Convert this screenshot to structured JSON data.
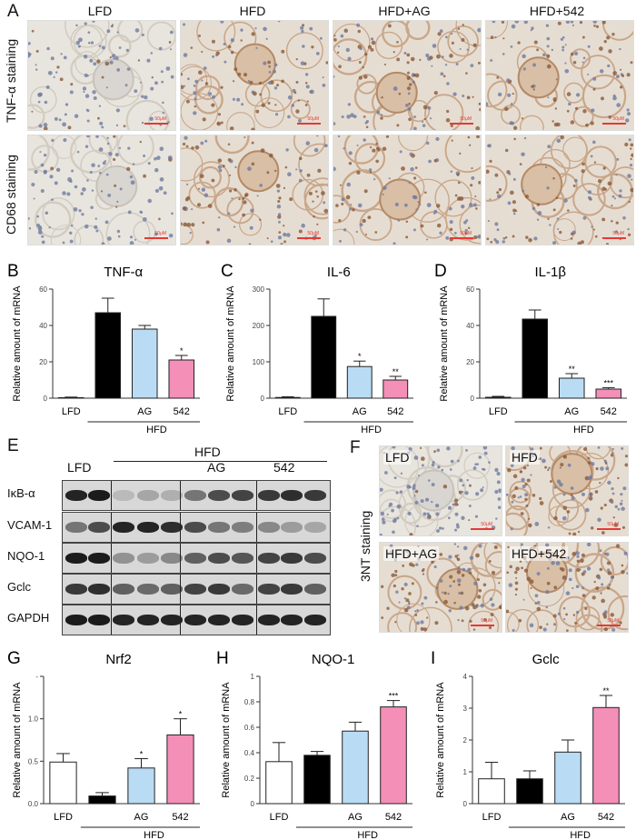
{
  "panelA": {
    "label": "A",
    "columns": [
      "LFD",
      "HFD",
      "HFD+AG",
      "HFD+542"
    ],
    "rows": [
      "TNF-α staining",
      "CD68 staining"
    ],
    "scale_text": "50μM"
  },
  "panelF": {
    "label": "F",
    "row_label": "3NT staining",
    "tiles": [
      "LFD",
      "HFD",
      "HFD+AG",
      "HFD+542"
    ]
  },
  "panelE": {
    "label": "E",
    "groups": {
      "lfd": "LFD",
      "hfd": "HFD",
      "ag": "AG",
      "542": "542"
    },
    "proteins": [
      "IκB-α",
      "VCAM-1",
      "NQO-1",
      "Gclc",
      "GAPDH"
    ]
  },
  "bars": {
    "colors": {
      "LFD": "#ffffff",
      "HFD": "#000000",
      "AG": "#b9dcf4",
      "542": "#f48fb8"
    },
    "group_label": "HFD"
  },
  "chart_data": [
    {
      "id": "B",
      "type": "bar",
      "title": "TNF-α",
      "ylabel": "Relative amount of mRNA",
      "categories": [
        "LFD",
        "",
        "AG",
        "542"
      ],
      "values": [
        0.3,
        47,
        38,
        21
      ],
      "errors": [
        0.3,
        8,
        2,
        2.5
      ],
      "sig": [
        "",
        "",
        "",
        "*"
      ],
      "ylim": [
        0,
        60
      ],
      "yticks": [
        0,
        20,
        40,
        60
      ]
    },
    {
      "id": "C",
      "type": "bar",
      "title": "IL-6",
      "ylabel": "Relative amount of mRNA",
      "categories": [
        "LFD",
        "",
        "AG",
        "542"
      ],
      "values": [
        2,
        225,
        87,
        50
      ],
      "errors": [
        2,
        48,
        15,
        10
      ],
      "sig": [
        "",
        "",
        "*",
        "**"
      ],
      "ylim": [
        0,
        300
      ],
      "yticks": [
        0,
        100,
        200,
        300
      ]
    },
    {
      "id": "D",
      "type": "bar",
      "title": "IL-1β",
      "ylabel": "Relative amount of mRNA",
      "categories": [
        "LFD",
        "",
        "AG",
        "542"
      ],
      "values": [
        0.5,
        43.5,
        11,
        5
      ],
      "errors": [
        0.5,
        5,
        2.5,
        0.8
      ],
      "sig": [
        "",
        "",
        "**",
        "***"
      ],
      "ylim": [
        0,
        60
      ],
      "yticks": [
        0,
        20,
        40,
        60
      ]
    },
    {
      "id": "G",
      "type": "bar",
      "title": "Nrf2",
      "ylabel": "Relative amount of mRNA",
      "categories": [
        "LFD",
        "",
        "AG",
        "542"
      ],
      "values": [
        0.49,
        0.09,
        0.42,
        0.81
      ],
      "errors": [
        0.1,
        0.04,
        0.11,
        0.19
      ],
      "sig": [
        "",
        "",
        "*",
        "*"
      ],
      "ylim": [
        0,
        1.5
      ],
      "yticks": [
        0.0,
        0.5,
        1.0,
        1.5
      ],
      "ytick_labels": [
        "0.0",
        "0.5",
        "1.0",
        "-"
      ]
    },
    {
      "id": "H",
      "type": "bar",
      "title": "NQO-1",
      "ylabel": "Relative amount of mRNA",
      "categories": [
        "LFD",
        "",
        "AG",
        "542"
      ],
      "values": [
        0.33,
        0.38,
        0.57,
        0.76
      ],
      "errors": [
        0.15,
        0.03,
        0.07,
        0.05
      ],
      "sig": [
        "",
        "",
        "",
        "***"
      ],
      "ylim": [
        0,
        1.0
      ],
      "yticks": [
        0.0,
        0.2,
        0.4,
        0.6,
        0.8,
        1.0
      ]
    },
    {
      "id": "I",
      "type": "bar",
      "title": "Gclc",
      "ylabel": "Relative amount of mRNA",
      "categories": [
        "LFD",
        "",
        "AG",
        "542"
      ],
      "values": [
        0.78,
        0.78,
        1.62,
        3.02
      ],
      "errors": [
        0.52,
        0.25,
        0.38,
        0.38
      ],
      "sig": [
        "",
        "",
        "",
        "**"
      ],
      "ylim": [
        0,
        4
      ],
      "yticks": [
        0,
        1,
        2,
        3,
        4
      ]
    }
  ]
}
